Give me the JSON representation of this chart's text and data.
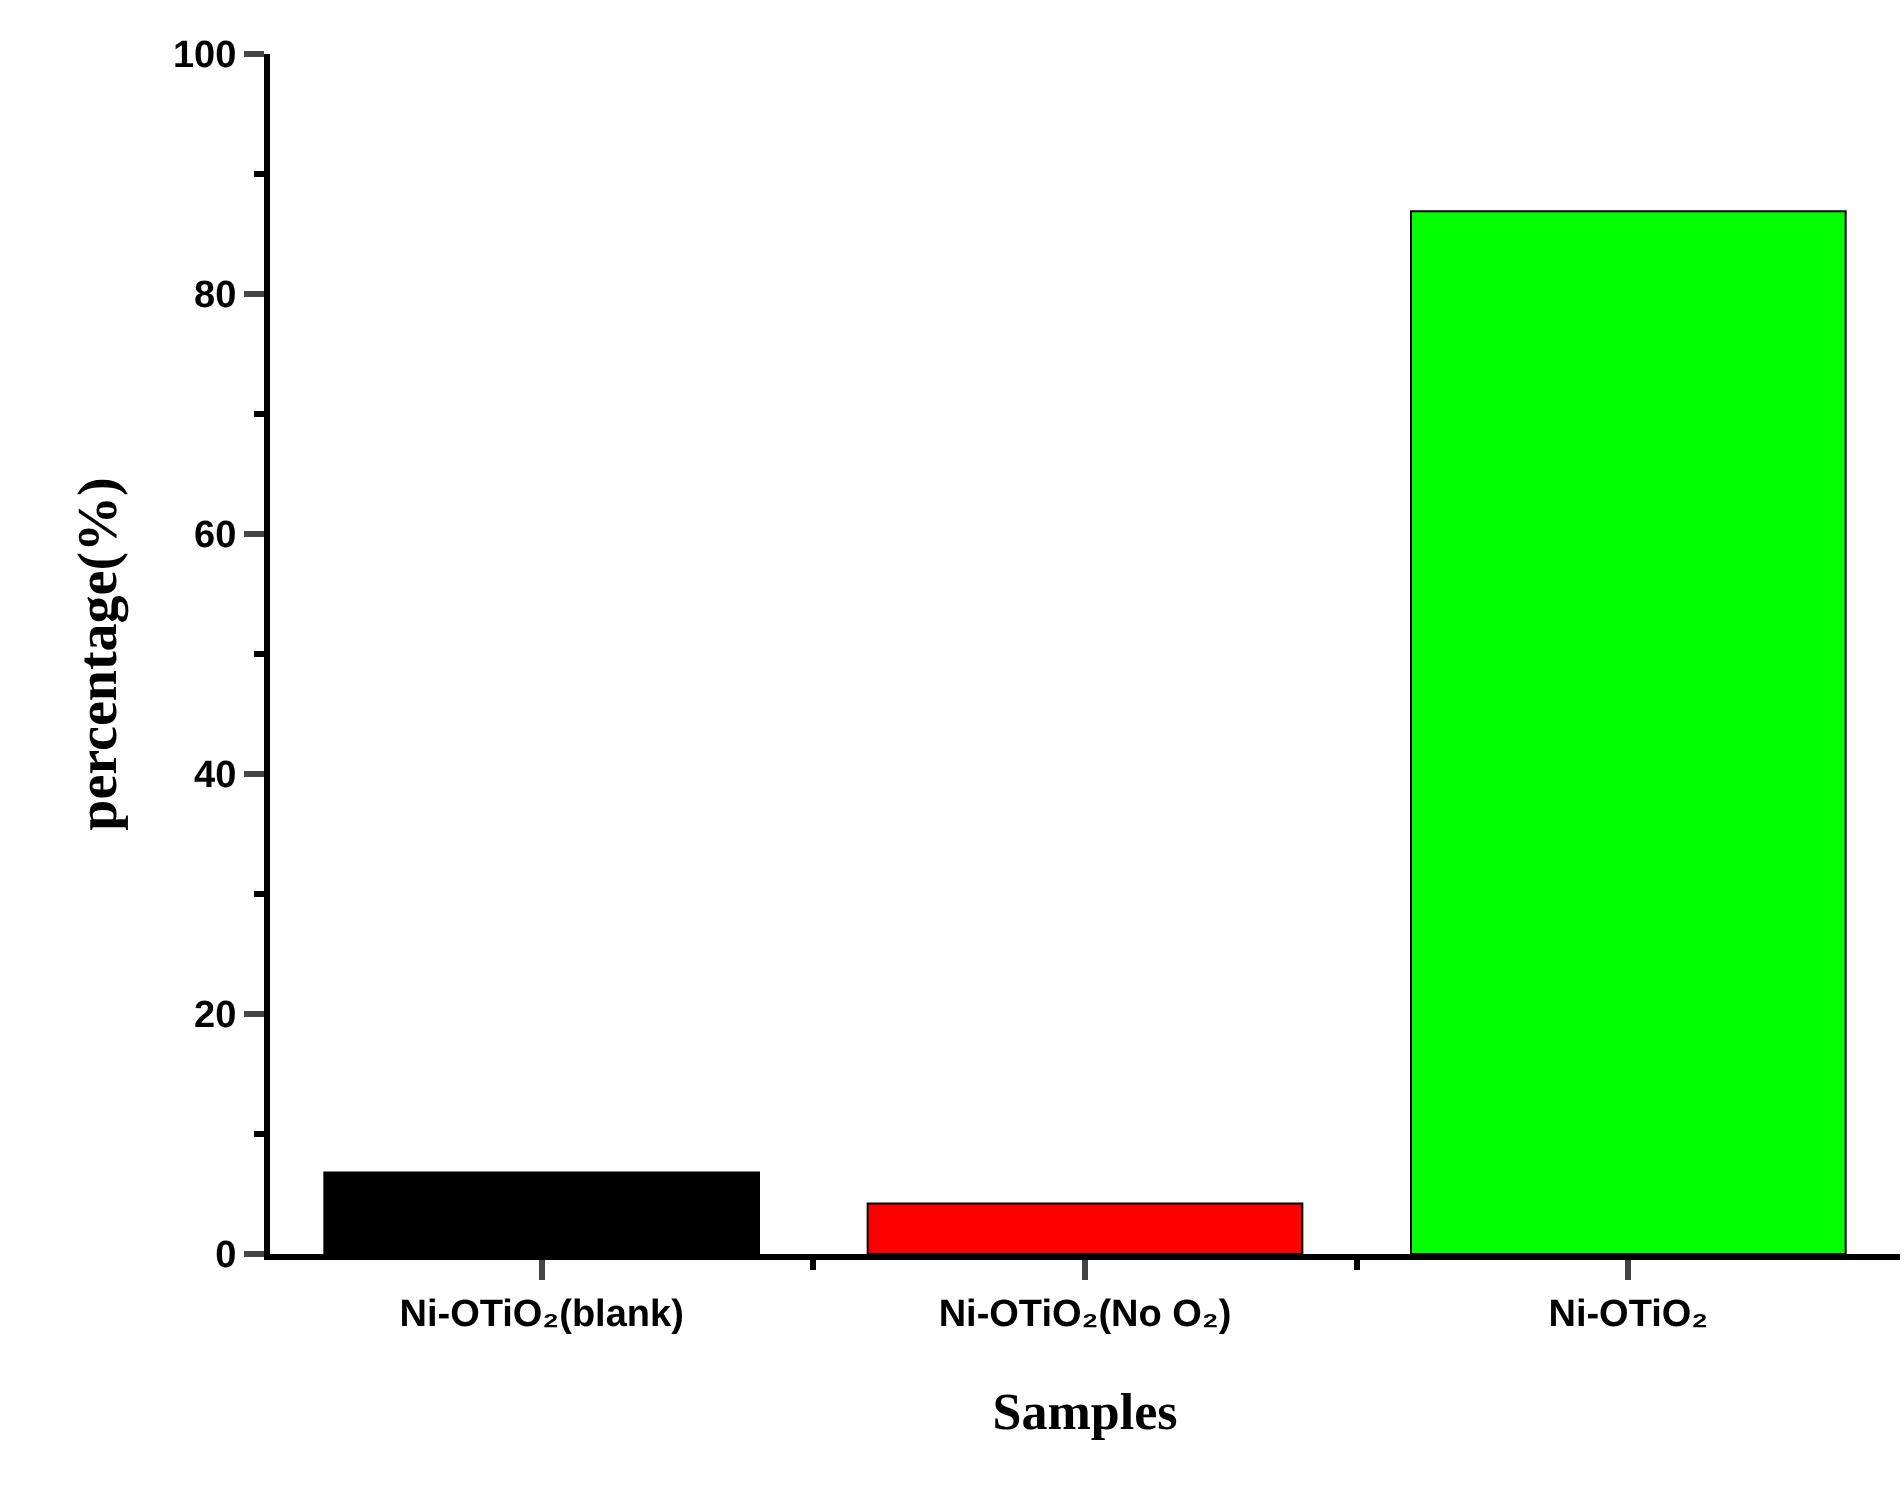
{
  "chart_data": {
    "type": "bar",
    "xlabel": "Samples",
    "ylabel": "percentage(%)",
    "categories": [
      "Ni-OTiO₂(blank)",
      "Ni-OTiO₂(No O₂)",
      "Ni-OTiO₂"
    ],
    "values": [
      6.8,
      4.2,
      86.9
    ],
    "colors": [
      "#000000",
      "#ff0000",
      "#00ff00"
    ],
    "ylim": [
      0,
      100
    ],
    "yticks": [
      0,
      20,
      40,
      60,
      80,
      100
    ],
    "legend": false
  }
}
